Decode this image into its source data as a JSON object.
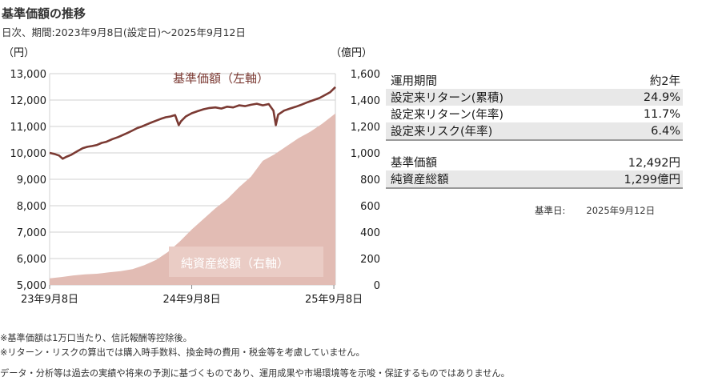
{
  "header": {
    "title": "基準価額の推移",
    "subtitle": "日次、期間:2023年9月8日(設定日)〜2025年9月12日"
  },
  "chart_data": {
    "type": "line",
    "left_axis": {
      "unit": "（円）",
      "ticks": [
        5000,
        6000,
        7000,
        8000,
        9000,
        10000,
        11000,
        12000,
        13000
      ],
      "range": [
        5000,
        13000
      ]
    },
    "right_axis": {
      "unit": "（億円）",
      "ticks": [
        0,
        200,
        400,
        600,
        800,
        1000,
        1200,
        1400,
        1600
      ],
      "range": [
        0,
        1600
      ]
    },
    "x_ticks": [
      "23年9月8日",
      "24年9月8日",
      "25年9月8日"
    ],
    "x_range_months": [
      0,
      24.13
    ],
    "x_tick_months": [
      0,
      12,
      24
    ],
    "series": [
      {
        "name": "基準価額（左軸）",
        "kind": "line",
        "axis": "left",
        "color": "#7b3a33",
        "points": [
          [
            0,
            10000
          ],
          [
            0.4,
            9960
          ],
          [
            0.8,
            9900
          ],
          [
            1.1,
            9780
          ],
          [
            1.4,
            9850
          ],
          [
            1.8,
            9920
          ],
          [
            2.3,
            10050
          ],
          [
            2.8,
            10180
          ],
          [
            3.2,
            10230
          ],
          [
            3.6,
            10260
          ],
          [
            4.0,
            10300
          ],
          [
            4.4,
            10380
          ],
          [
            4.8,
            10420
          ],
          [
            5.3,
            10520
          ],
          [
            5.8,
            10600
          ],
          [
            6.2,
            10680
          ],
          [
            6.6,
            10760
          ],
          [
            7.0,
            10850
          ],
          [
            7.4,
            10940
          ],
          [
            7.8,
            11000
          ],
          [
            8.2,
            11080
          ],
          [
            8.6,
            11150
          ],
          [
            9.0,
            11220
          ],
          [
            9.4,
            11290
          ],
          [
            9.8,
            11350
          ],
          [
            10.2,
            11380
          ],
          [
            10.6,
            11430
          ],
          [
            10.9,
            11050
          ],
          [
            11.1,
            11200
          ],
          [
            11.5,
            11380
          ],
          [
            12.0,
            11500
          ],
          [
            12.5,
            11580
          ],
          [
            13.0,
            11650
          ],
          [
            13.5,
            11700
          ],
          [
            14.0,
            11720
          ],
          [
            14.5,
            11680
          ],
          [
            15.0,
            11750
          ],
          [
            15.5,
            11720
          ],
          [
            16.0,
            11800
          ],
          [
            16.5,
            11770
          ],
          [
            17.0,
            11820
          ],
          [
            17.5,
            11860
          ],
          [
            18.0,
            11800
          ],
          [
            18.5,
            11850
          ],
          [
            18.9,
            11600
          ],
          [
            19.1,
            11050
          ],
          [
            19.3,
            11450
          ],
          [
            19.8,
            11600
          ],
          [
            20.3,
            11680
          ],
          [
            20.8,
            11750
          ],
          [
            21.3,
            11830
          ],
          [
            21.8,
            11920
          ],
          [
            22.3,
            12000
          ],
          [
            22.8,
            12080
          ],
          [
            23.3,
            12200
          ],
          [
            23.7,
            12300
          ],
          [
            24.13,
            12492
          ]
        ]
      },
      {
        "name": "純資産総額（右軸）",
        "kind": "area",
        "axis": "right",
        "color": "#e2bcb4",
        "points": [
          [
            0,
            50
          ],
          [
            1,
            60
          ],
          [
            2,
            72
          ],
          [
            3,
            80
          ],
          [
            4,
            85
          ],
          [
            5,
            95
          ],
          [
            6,
            105
          ],
          [
            7,
            120
          ],
          [
            8,
            150
          ],
          [
            9,
            190
          ],
          [
            10,
            250
          ],
          [
            11,
            330
          ],
          [
            12,
            420
          ],
          [
            13,
            500
          ],
          [
            14,
            580
          ],
          [
            15,
            650
          ],
          [
            16,
            740
          ],
          [
            17,
            820
          ],
          [
            18,
            940
          ],
          [
            19,
            990
          ],
          [
            20,
            1050
          ],
          [
            21,
            1110
          ],
          [
            22,
            1160
          ],
          [
            23,
            1220
          ],
          [
            24.13,
            1299
          ]
        ]
      }
    ]
  },
  "stats": {
    "group1": [
      {
        "label": "運用期間",
        "value": "約2年"
      },
      {
        "label": "設定来リターン(累積)",
        "value": "24.9%"
      },
      {
        "label": "設定来リターン(年率)",
        "value": "11.7%"
      },
      {
        "label": "設定来リスク(年率)",
        "value": "6.4%"
      }
    ],
    "group2": [
      {
        "label": "基準価額",
        "value": "12,492円"
      },
      {
        "label": "純資産総額",
        "value": "1,299億円"
      }
    ],
    "asof_label": "基準日:",
    "asof_value": "2025年9月12日"
  },
  "notes": [
    "※基準価額は1万口当たり、信託報酬等控除後。",
    "※リターン・リスクの算出では購入時手数料、換金時の費用・税金等を考慮していません。"
  ],
  "disclaimer": "データ・分析等は過去の実績や将来の予測に基づくものであり、運用成果や市場環境等を示唆・保証するものではありません。",
  "colors": {
    "nav_line": "#7b3a33",
    "asset_area": "#e2bcb4",
    "nav_label_text": "#7b3a33",
    "asset_label_box": "#eaccc5",
    "asset_label_text": "#ffffff"
  }
}
